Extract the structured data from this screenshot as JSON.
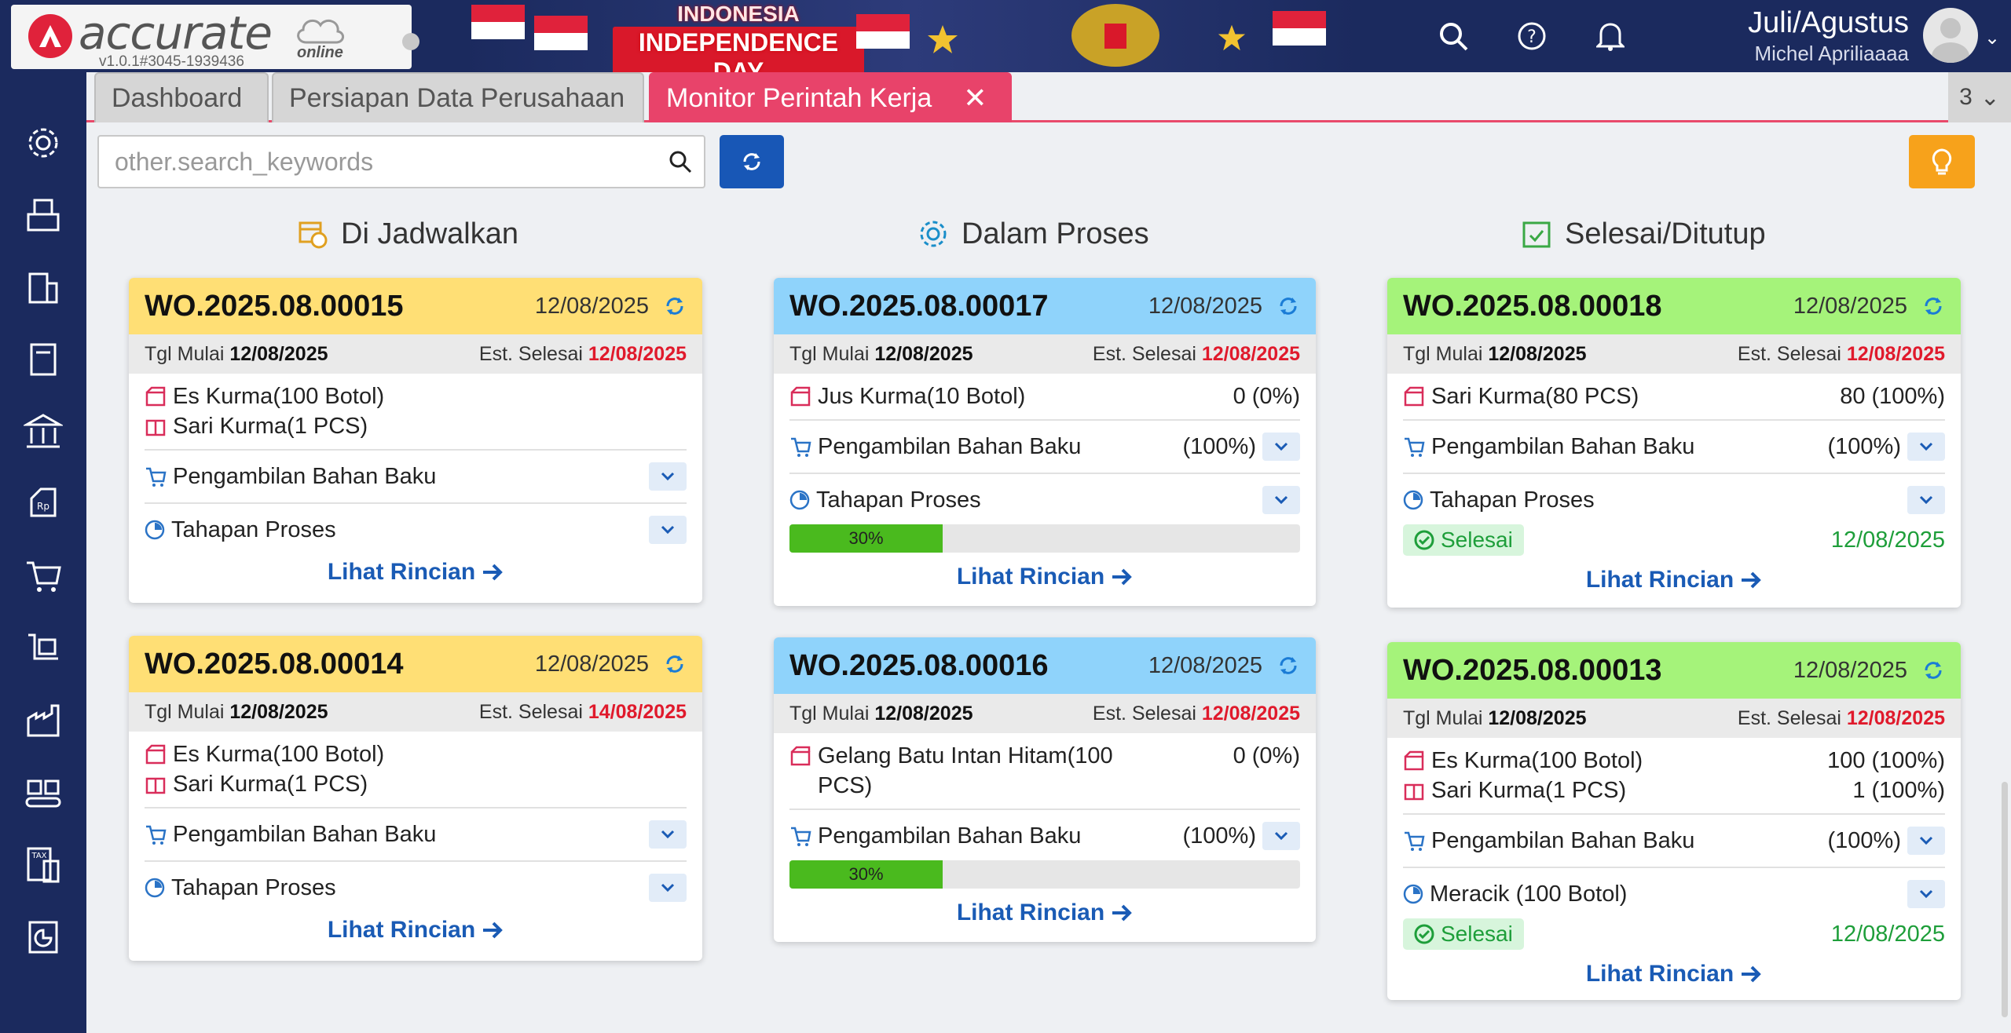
{
  "app": {
    "logo_text": "accurate",
    "logo_online": "online",
    "version": "v1.0.1#3045-1939436"
  },
  "banner": {
    "line1": "INDONESIA",
    "line2": "INDEPENDENCE DAY"
  },
  "header": {
    "period": "Juli/Agustus",
    "user": "Michel Apriliaaaa"
  },
  "tabs": [
    {
      "label": "Dashboard"
    },
    {
      "label": "Persiapan Data Perusahaan"
    },
    {
      "label": "Monitor Perintah Kerja",
      "close": "✕"
    }
  ],
  "tab_counter": "3",
  "search": {
    "placeholder": "other.search_keywords"
  },
  "columns": {
    "scheduled": "Di Jadwalkan",
    "in_process": "Dalam Proses",
    "closed": "Selesai/Ditutup"
  },
  "labels": {
    "start": "Tgl Mulai",
    "est_finish": "Est. Selesai",
    "detail": "Lihat Rincian",
    "material": "Pengambilan Bahan Baku",
    "process": "Tahapan Proses",
    "done": "Selesai"
  },
  "cards": {
    "c15": {
      "number": "WO.2025.08.00015",
      "date": "12/08/2025",
      "start": "12/08/2025",
      "est": "12/08/2025",
      "products": [
        "Es Kurma(100 Botol)",
        "Sari Kurma(1 PCS)"
      ]
    },
    "c14": {
      "number": "WO.2025.08.00014",
      "date": "12/08/2025",
      "start": "12/08/2025",
      "est": "14/08/2025",
      "products": [
        "Es Kurma(100 Botol)",
        "Sari Kurma(1 PCS)"
      ]
    },
    "c17": {
      "number": "WO.2025.08.00017",
      "date": "12/08/2025",
      "start": "12/08/2025",
      "est": "12/08/2025",
      "product": "Jus Kurma(10 Botol)",
      "product_qty": "0 (0%)",
      "material_pct": "(100%)",
      "progress_label": "30%",
      "progress": 0.3
    },
    "c16": {
      "number": "WO.2025.08.00016",
      "date": "12/08/2025",
      "start": "12/08/2025",
      "est": "12/08/2025",
      "product": "Gelang Batu Intan Hitam(100 PCS)",
      "product_qty": "0 (0%)",
      "material_pct": "(100%)",
      "progress_label": "30%",
      "progress": 0.3
    },
    "c18": {
      "number": "WO.2025.08.00018",
      "date": "12/08/2025",
      "start": "12/08/2025",
      "est": "12/08/2025",
      "product": "Sari Kurma(80 PCS)",
      "product_qty": "80 (100%)",
      "material_pct": "(100%)",
      "done_date": "12/08/2025"
    },
    "c13": {
      "number": "WO.2025.08.00013",
      "date": "12/08/2025",
      "start": "12/08/2025",
      "est": "12/08/2025",
      "products": [
        "Es Kurma(100 Botol)",
        "Sari Kurma(1 PCS)"
      ],
      "product_qtys": [
        "100 (100%)",
        "1 (100%)"
      ],
      "material_pct": "(100%)",
      "step": "Meracik (100 Botol)",
      "done_date": "12/08/2025"
    }
  },
  "colors": {
    "navy": "#1b2a5e",
    "accent": "#e8436a",
    "yellow": "#ffdf75",
    "blue": "#8fd3fb",
    "green": "#a5f37a",
    "red_date": "#e01a2c",
    "link": "#1a5bb5",
    "progress": "#4aba1e"
  }
}
